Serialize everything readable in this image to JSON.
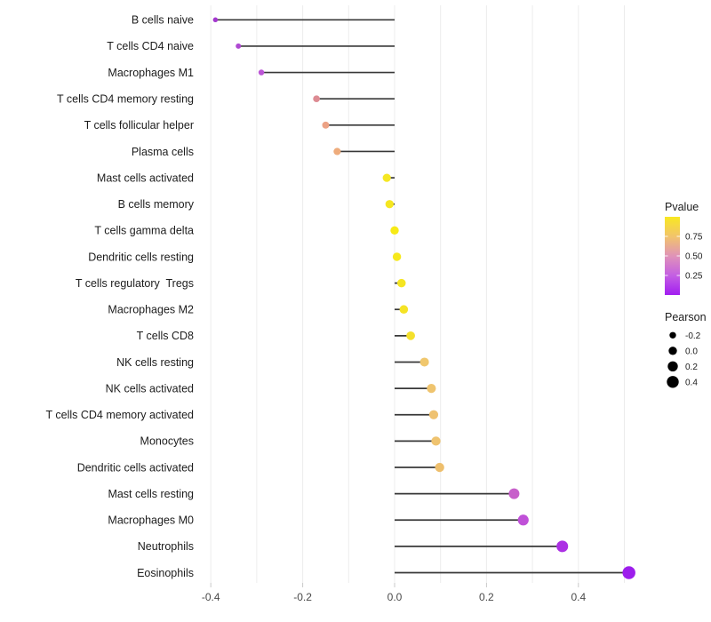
{
  "chart_data": {
    "type": "lollipop",
    "orientation": "horizontal",
    "title": "",
    "xlabel": "",
    "ylabel": "",
    "xlim": [
      -0.44,
      0.56
    ],
    "baseline": 0.0,
    "x_ticks": [
      {
        "label": "-0.4",
        "value": -0.4
      },
      {
        "label": "-0.2",
        "value": -0.2
      },
      {
        "label": "0.0",
        "value": 0.0
      },
      {
        "label": "0.2",
        "value": 0.2
      },
      {
        "label": "0.4",
        "value": 0.4
      }
    ],
    "x_minor_grid": [
      -0.3,
      -0.1,
      0.1,
      0.3,
      0.5
    ],
    "grid": "vertical-only",
    "points": [
      {
        "label": "B cells naive",
        "pearson": -0.39,
        "color": "#a438ce"
      },
      {
        "label": "T cells CD4 naive",
        "pearson": -0.34,
        "color": "#af49d2"
      },
      {
        "label": "Macrophages M1",
        "pearson": -0.29,
        "color": "#bc55d6"
      },
      {
        "label": "T cells CD4 memory resting",
        "pearson": -0.17,
        "color": "#dd8b93"
      },
      {
        "label": "T cells follicular helper",
        "pearson": -0.15,
        "color": "#eca285"
      },
      {
        "label": "Plasma cells",
        "pearson": -0.125,
        "color": "#eeac7c"
      },
      {
        "label": "Mast cells activated",
        "pearson": -0.017,
        "color": "#f5e723"
      },
      {
        "label": "B cells memory",
        "pearson": -0.011,
        "color": "#f5e61f"
      },
      {
        "label": "T cells gamma delta",
        "pearson": 0.0,
        "color": "#f7ea16"
      },
      {
        "label": "Dendritic cells resting",
        "pearson": 0.005,
        "color": "#f6e81c"
      },
      {
        "label": "T cells regulatory  Tregs",
        "pearson": 0.015,
        "color": "#f5e522"
      },
      {
        "label": "Macrophages M2",
        "pearson": 0.02,
        "color": "#f5e325"
      },
      {
        "label": "T cells CD8",
        "pearson": 0.035,
        "color": "#f4e02c"
      },
      {
        "label": "NK cells resting",
        "pearson": 0.065,
        "color": "#f0c76d"
      },
      {
        "label": "NK cells activated",
        "pearson": 0.08,
        "color": "#efc46f"
      },
      {
        "label": "T cells CD4 memory activated",
        "pearson": 0.085,
        "color": "#efc271"
      },
      {
        "label": "Monocytes",
        "pearson": 0.09,
        "color": "#efc36f"
      },
      {
        "label": "Dendritic cells activated",
        "pearson": 0.098,
        "color": "#eebf6d"
      },
      {
        "label": "Mast cells resting",
        "pearson": 0.26,
        "color": "#c75fca"
      },
      {
        "label": "Macrophages M0",
        "pearson": 0.28,
        "color": "#c051d8"
      },
      {
        "label": "Neutrophils",
        "pearson": 0.365,
        "color": "#ac30e4"
      },
      {
        "label": "Eosinophils",
        "pearson": 0.51,
        "color": "#9d1eec"
      }
    ],
    "legend_pvalue": {
      "title": "Pvalue",
      "range": [
        0.0,
        1.0
      ],
      "tick_labels": [
        "0.75",
        "0.50",
        "0.25"
      ],
      "tick_values": [
        0.75,
        0.5,
        0.25
      ],
      "gradient_top_to_bottom": [
        "#f8e821",
        "#f2c46b",
        "#e093b8",
        "#c45fe3",
        "#a21ef0"
      ]
    },
    "legend_pearson": {
      "title": "Pearson",
      "items": [
        {
          "label": "-0.2",
          "value": -0.2
        },
        {
          "label": "0.0",
          "value": 0.0
        },
        {
          "label": "0.2",
          "value": 0.2
        },
        {
          "label": "0.4",
          "value": 0.4
        }
      ],
      "dot_color": "#000000"
    },
    "colors": {
      "stem": "#383838",
      "gridline": "#ececec",
      "axis_tick": "#c9c9c9",
      "axis_text": "#4a4a4a",
      "category_text": "#1c1c1c",
      "background": "#ffffff"
    }
  }
}
